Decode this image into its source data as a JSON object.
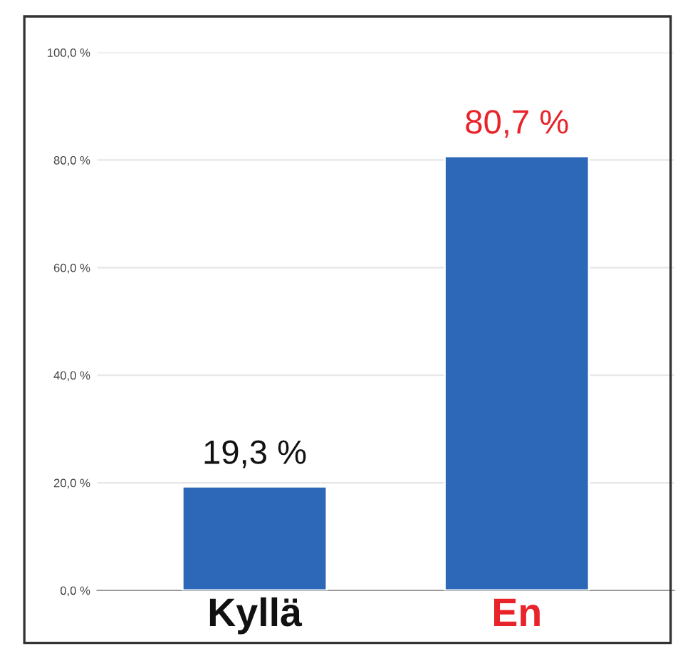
{
  "chart_data": {
    "type": "bar",
    "categories": [
      "Kyllä",
      "En"
    ],
    "values": [
      19.3,
      80.7
    ],
    "value_labels": [
      "19,3 %",
      "80,7 %"
    ],
    "colors": [
      "#2d67b8",
      "#2d67b8"
    ],
    "ylim": [
      0,
      100
    ],
    "yticks": [
      {
        "value": 0,
        "label": "0,0 %"
      },
      {
        "value": 20,
        "label": "20,0 %"
      },
      {
        "value": 40,
        "label": "40,0 %"
      },
      {
        "value": 60,
        "label": "60,0 %"
      },
      {
        "value": 80,
        "label": "80,0 %"
      },
      {
        "value": 100,
        "label": "100,0 %"
      }
    ],
    "grid": "y"
  }
}
